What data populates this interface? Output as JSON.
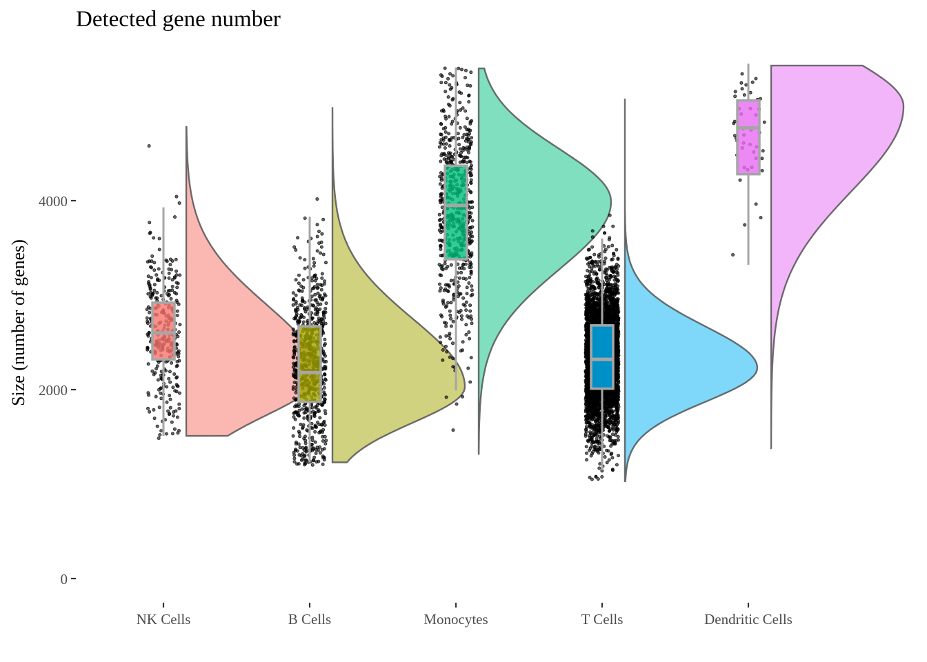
{
  "chart_data": {
    "type": "raincloud",
    "title": "Detected gene number",
    "xlabel": "",
    "ylabel": "Size (number of genes)",
    "ylim": [
      0,
      5450
    ],
    "yticks": [
      0,
      2000,
      4000
    ],
    "ytick_labels": [
      "0",
      "2000",
      "4000"
    ],
    "grid": false,
    "legend": "none",
    "categories": [
      "NK Cells",
      "B Cells",
      "Monocytes",
      "T Cells",
      "Dendritic Cells"
    ],
    "series": [
      {
        "name": "NK Cells",
        "color": "#f8766d",
        "violin_color": "#fbb8b3",
        "box": {
          "whisker_low": 1510,
          "q1": 2320,
          "median": 2600,
          "q3": 2920,
          "whisker_high": 3930
        },
        "density": {
          "min": 1510,
          "max": 4780,
          "mode": 2150,
          "sd_low": 420,
          "sd_high": 750
        },
        "points": {
          "n": 300,
          "min": 1480,
          "max": 4800,
          "center": 2600,
          "spread": 520
        }
      },
      {
        "name": "B Cells",
        "color": "#a3a500",
        "violin_color": "#d1d280",
        "box": {
          "whisker_low": 1230,
          "q1": 1870,
          "median": 2180,
          "q3": 2670,
          "whisker_high": 3830
        },
        "density": {
          "min": 1230,
          "max": 4990,
          "mode": 2030,
          "sd_low": 380,
          "sd_high": 720
        },
        "points": {
          "n": 700,
          "min": 1200,
          "max": 5000,
          "center": 2250,
          "spread": 560
        }
      },
      {
        "name": "Monocytes",
        "color": "#00bf7d",
        "violin_color": "#7fdfbe",
        "box": {
          "whisker_low": 1990,
          "q1": 3380,
          "median": 3950,
          "q3": 4370,
          "whisker_high": 5410
        },
        "density": {
          "min": 1320,
          "max": 5400,
          "mode": 3990,
          "sd_low": 720,
          "sd_high": 560
        },
        "points": {
          "n": 600,
          "min": 1300,
          "max": 5420,
          "center": 3900,
          "spread": 700
        }
      },
      {
        "name": "T Cells",
        "color": "#00b0f6",
        "box_color": "#0090c8",
        "violin_color": "#7fd7fa",
        "box": {
          "whisker_low": 1150,
          "q1": 2010,
          "median": 2320,
          "q3": 2680,
          "whisker_high": 3600
        },
        "density": {
          "min": 1030,
          "max": 5080,
          "mode": 2230,
          "sd_low": 360,
          "sd_high": 440
        },
        "points": {
          "n": 4000,
          "min": 1030,
          "max": 5100,
          "center": 2340,
          "spread": 420
        }
      },
      {
        "name": "Dendritic Cells",
        "color": "#e76bf3",
        "violin_color": "#f3b5f9",
        "box": {
          "whisker_low": 3320,
          "q1": 4280,
          "median": 4770,
          "q3": 5060,
          "whisker_high": 5450
        },
        "density": {
          "min": 1380,
          "max": 5430,
          "mode": 5000,
          "sd_low": 900,
          "sd_high": 500
        },
        "points": {
          "n": 45,
          "min": 1380,
          "max": 5450,
          "center": 4700,
          "spread": 520
        }
      }
    ]
  }
}
